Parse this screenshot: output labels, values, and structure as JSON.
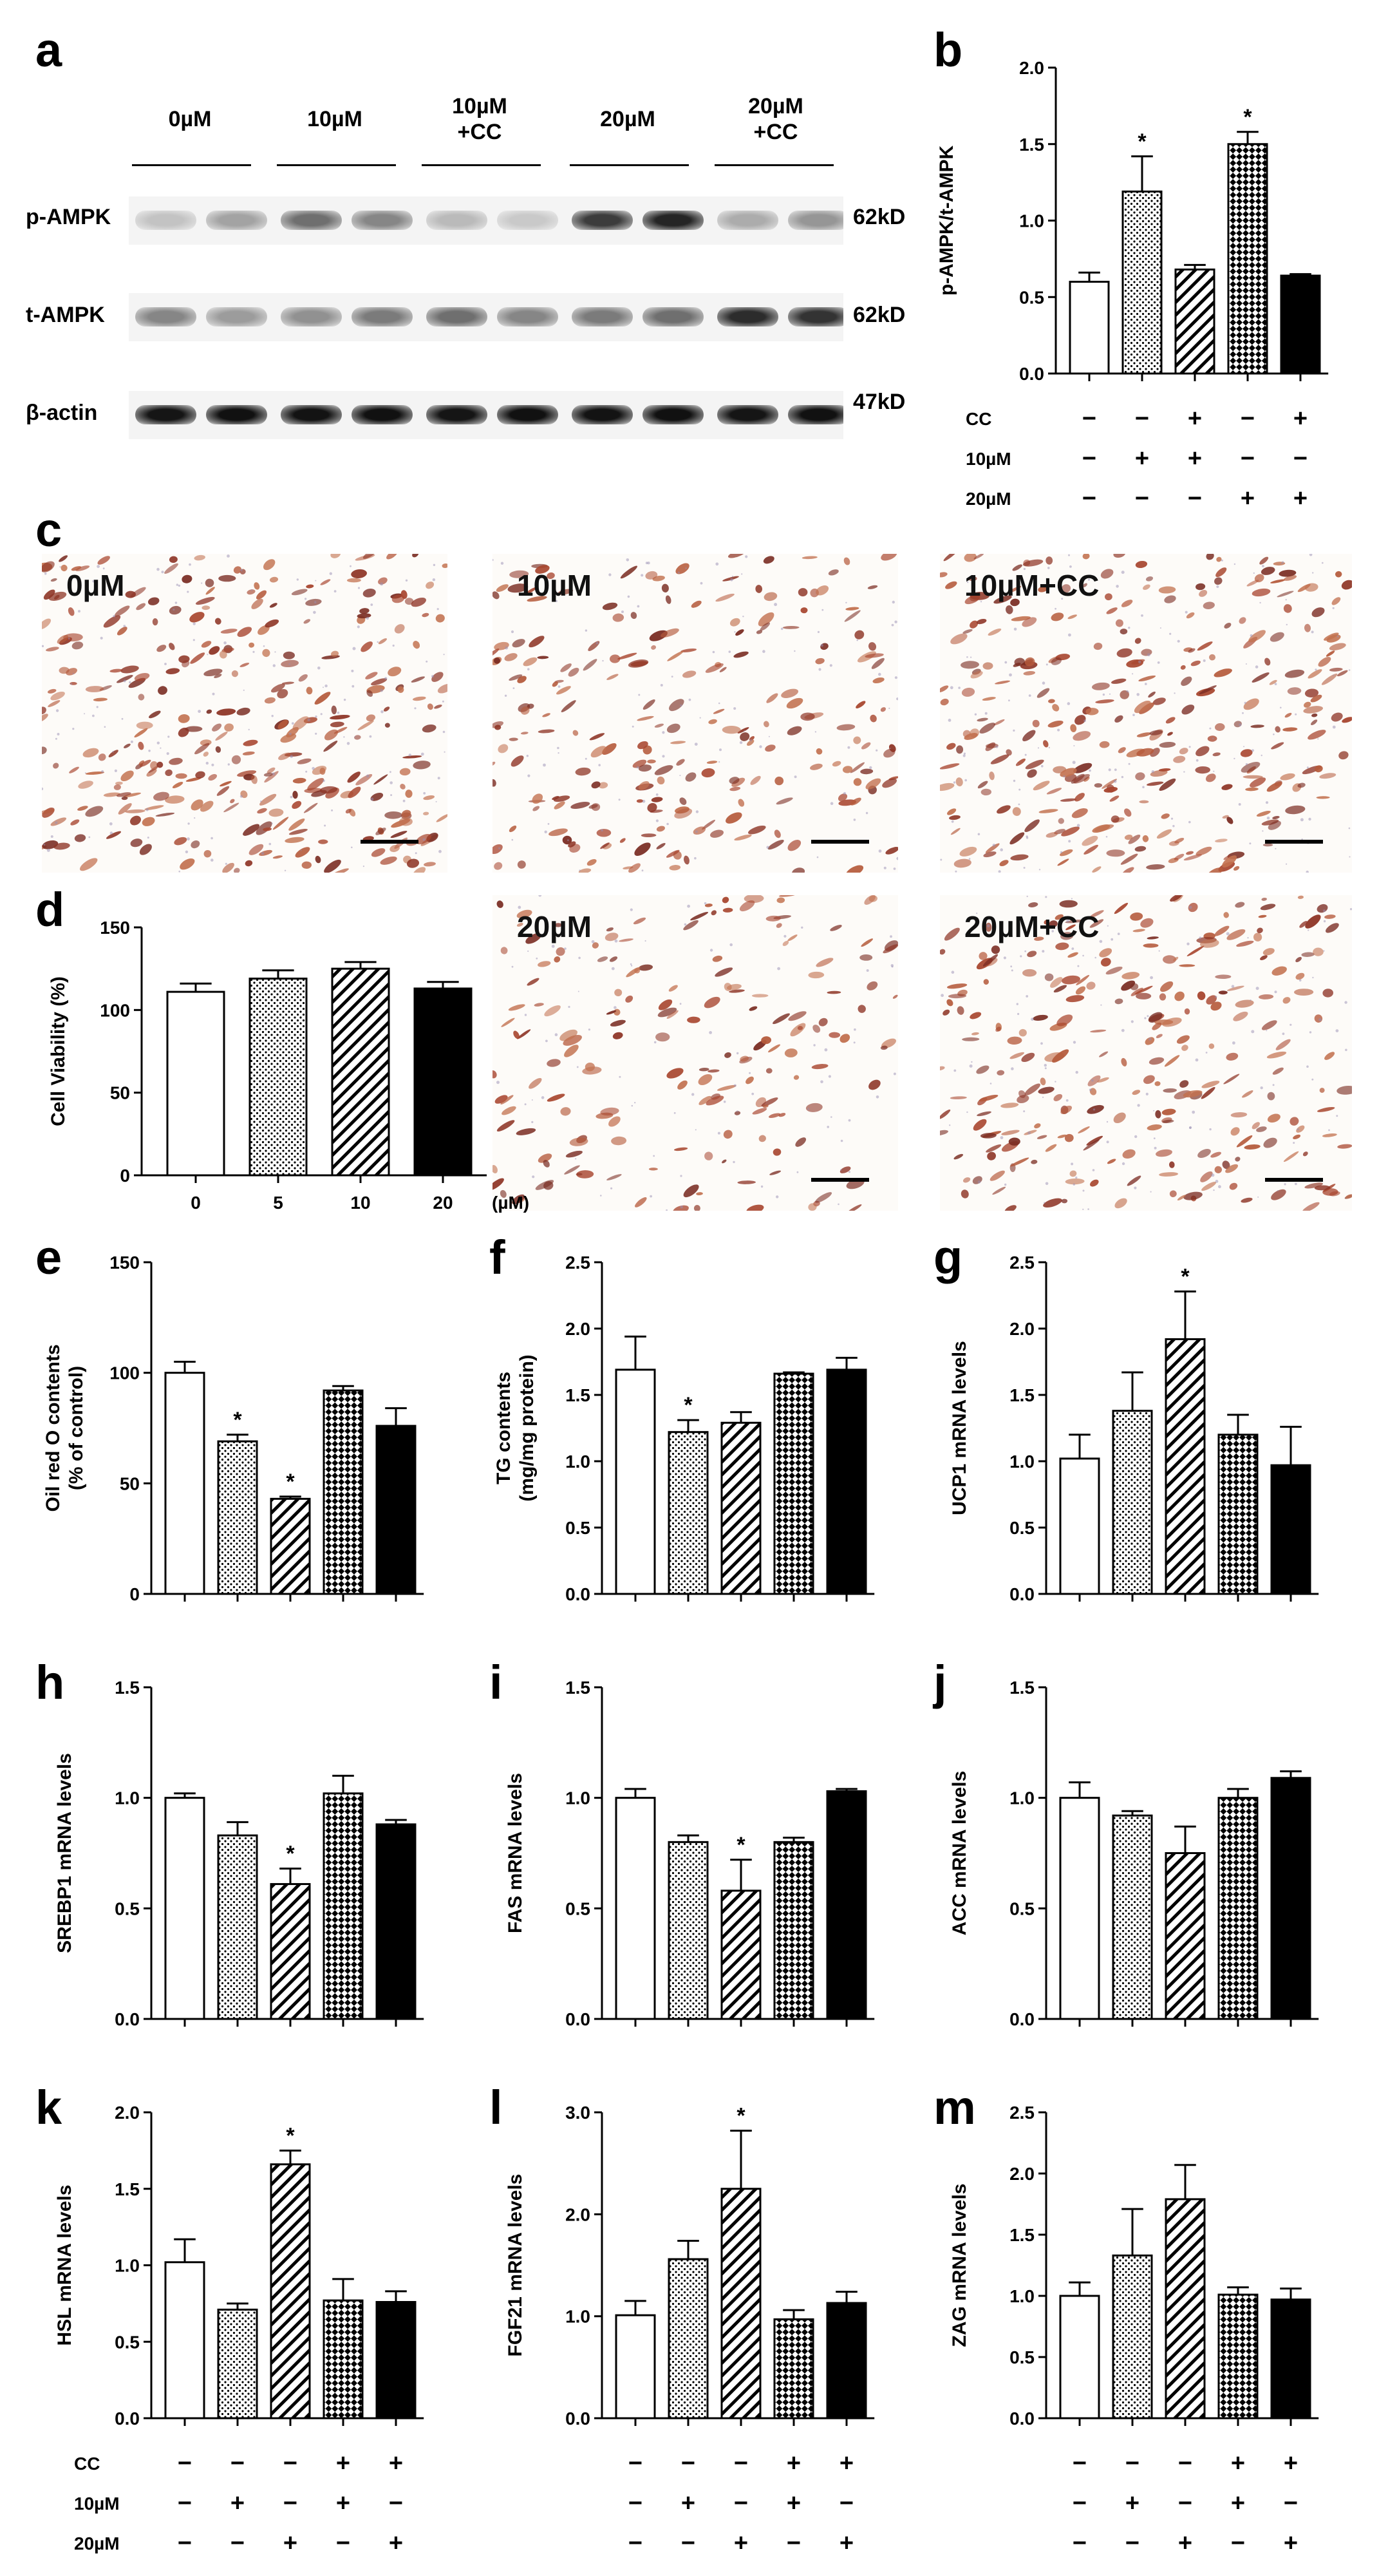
{
  "panels": {
    "a": "a",
    "b": "b",
    "c": "c",
    "d": "d",
    "e": "e",
    "f": "f",
    "g": "g",
    "h": "h",
    "i": "i",
    "j": "j",
    "k": "k",
    "l": "l",
    "m": "m"
  },
  "blot": {
    "lanes": [
      "0µM",
      "10µM",
      "10µM\n+CC",
      "20µM",
      "20µM\n+CC"
    ],
    "rows": [
      {
        "label": "p-AMPK",
        "kd": "62kD",
        "intensities": [
          0.18,
          0.32,
          0.55,
          0.45,
          0.22,
          0.15,
          0.78,
          0.88,
          0.28,
          0.38
        ]
      },
      {
        "label": "t-AMPK",
        "kd": "62kD",
        "intensities": [
          0.45,
          0.35,
          0.4,
          0.5,
          0.55,
          0.45,
          0.5,
          0.55,
          0.85,
          0.82
        ]
      },
      {
        "label": "β-actin",
        "kd": "47kD",
        "intensities": [
          0.95,
          0.97,
          0.96,
          0.97,
          0.95,
          0.97,
          0.96,
          0.97,
          0.95,
          0.97
        ]
      }
    ]
  },
  "micro": {
    "labels": [
      "0µM",
      "10µM",
      "10µM+CC",
      "20µM",
      "20µM+CC"
    ]
  },
  "treatment_table": {
    "rows": [
      {
        "label": "CC",
        "marks": [
          "−",
          "−",
          "+",
          "−",
          "+"
        ]
      },
      {
        "label": "10µM",
        "marks": [
          "−",
          "+",
          "+",
          "−",
          "−"
        ]
      },
      {
        "label": "20µM",
        "marks": [
          "−",
          "−",
          "−",
          "+",
          "+"
        ]
      }
    ],
    "bottom_rows": [
      {
        "label": "CC",
        "marks": [
          "−",
          "−",
          "−",
          "+",
          "+"
        ]
      },
      {
        "label": "10µM",
        "marks": [
          "−",
          "+",
          "−",
          "+",
          "−"
        ]
      },
      {
        "label": "20µM",
        "marks": [
          "−",
          "−",
          "+",
          "−",
          "+"
        ]
      }
    ]
  },
  "chart_data": [
    {
      "id": "b",
      "type": "bar",
      "ylabel": "p-AMPK/t-AMPK",
      "ylim": [
        0,
        2.0
      ],
      "yticks": [
        "0.0",
        "0.5",
        "1.0",
        "1.5",
        "2.0"
      ],
      "tickvals": [
        0,
        0.5,
        1.0,
        1.5,
        2.0
      ],
      "values": [
        0.6,
        1.19,
        0.68,
        1.5,
        0.64
      ],
      "errors": [
        0.06,
        0.23,
        0.03,
        0.08,
        0.01
      ],
      "sig": [
        "",
        "*",
        "",
        "*",
        ""
      ]
    },
    {
      "id": "d",
      "type": "bar",
      "ylabel": "Cell Viability (%)",
      "ylim": [
        0,
        150
      ],
      "yticks": [
        "0",
        "50",
        "100",
        "150"
      ],
      "tickvals": [
        0,
        50,
        100,
        150
      ],
      "categories": [
        "0",
        "5",
        "10",
        "20"
      ],
      "unit": "(µM)",
      "values": [
        111,
        119,
        125,
        113
      ],
      "errors": [
        5,
        5,
        4,
        4
      ],
      "sig": [
        "",
        "",
        "",
        ""
      ]
    },
    {
      "id": "e",
      "type": "bar",
      "ylabel": [
        "Oil red O contents",
        "(% of control)"
      ],
      "ylim": [
        0,
        150
      ],
      "yticks": [
        "0",
        "50",
        "100",
        "150"
      ],
      "tickvals": [
        0,
        50,
        100,
        150
      ],
      "values": [
        100,
        69,
        43,
        92,
        76
      ],
      "errors": [
        5,
        3,
        1,
        2,
        8
      ],
      "sig": [
        "",
        "*",
        "*",
        "",
        ""
      ]
    },
    {
      "id": "f",
      "type": "bar",
      "ylabel": [
        "TG contents",
        "(mg/mg protein)"
      ],
      "ylim": [
        0,
        2.5
      ],
      "yticks": [
        "0.0",
        "0.5",
        "1.0",
        "1.5",
        "2.0",
        "2.5"
      ],
      "tickvals": [
        0,
        0.5,
        1.0,
        1.5,
        2.0,
        2.5
      ],
      "values": [
        1.69,
        1.22,
        1.29,
        1.66,
        1.69
      ],
      "errors": [
        0.25,
        0.09,
        0.08,
        0.01,
        0.09
      ],
      "sig": [
        "",
        "*",
        "",
        "",
        ""
      ]
    },
    {
      "id": "g",
      "type": "bar",
      "ylabel": "UCP1 mRNA levels",
      "ylim": [
        0,
        2.5
      ],
      "yticks": [
        "0.0",
        "0.5",
        "1.0",
        "1.5",
        "2.0",
        "2.5"
      ],
      "tickvals": [
        0,
        0.5,
        1.0,
        1.5,
        2.0,
        2.5
      ],
      "values": [
        1.02,
        1.38,
        1.92,
        1.2,
        0.97
      ],
      "errors": [
        0.18,
        0.29,
        0.36,
        0.15,
        0.29
      ],
      "sig": [
        "",
        "",
        "*",
        "",
        ""
      ]
    },
    {
      "id": "h",
      "type": "bar",
      "ylabel": "SREBP1 mRNA levels",
      "ylim": [
        0,
        1.5
      ],
      "yticks": [
        "0.0",
        "0.5",
        "1.0",
        "1.5"
      ],
      "tickvals": [
        0,
        0.5,
        1.0,
        1.5
      ],
      "values": [
        1.0,
        0.83,
        0.61,
        1.02,
        0.88
      ],
      "errors": [
        0.02,
        0.06,
        0.07,
        0.08,
        0.02
      ],
      "sig": [
        "",
        "",
        "*",
        "",
        ""
      ]
    },
    {
      "id": "i",
      "type": "bar",
      "ylabel": "FAS mRNA levels",
      "ylim": [
        0,
        1.5
      ],
      "yticks": [
        "0.0",
        "0.5",
        "1.0",
        "1.5"
      ],
      "tickvals": [
        0,
        0.5,
        1.0,
        1.5
      ],
      "values": [
        1.0,
        0.8,
        0.58,
        0.8,
        1.03
      ],
      "errors": [
        0.04,
        0.03,
        0.14,
        0.02,
        0.01
      ],
      "sig": [
        "",
        "",
        "*",
        "",
        ""
      ]
    },
    {
      "id": "j",
      "type": "bar",
      "ylabel": "ACC mRNA levels",
      "ylim": [
        0,
        1.5
      ],
      "yticks": [
        "0.0",
        "0.5",
        "1.0",
        "1.5"
      ],
      "tickvals": [
        0,
        0.5,
        1.0,
        1.5
      ],
      "values": [
        1.0,
        0.92,
        0.75,
        1.0,
        1.09
      ],
      "errors": [
        0.07,
        0.02,
        0.12,
        0.04,
        0.03
      ],
      "sig": [
        "",
        "",
        "",
        "",
        ""
      ]
    },
    {
      "id": "k",
      "type": "bar",
      "ylabel": "HSL mRNA levels",
      "ylim": [
        0,
        2.0
      ],
      "yticks": [
        "0.0",
        "0.5",
        "1.0",
        "1.5",
        "2.0"
      ],
      "tickvals": [
        0,
        0.5,
        1.0,
        1.5,
        2.0
      ],
      "values": [
        1.02,
        0.71,
        1.66,
        0.77,
        0.76
      ],
      "errors": [
        0.15,
        0.04,
        0.09,
        0.14,
        0.07
      ],
      "sig": [
        "",
        "",
        "*",
        "",
        ""
      ]
    },
    {
      "id": "l",
      "type": "bar",
      "ylabel": "FGF21 mRNA levels",
      "ylim": [
        0,
        3.0
      ],
      "yticks": [
        "0.0",
        "1.0",
        "2.0",
        "3.0"
      ],
      "tickvals": [
        0,
        1.0,
        2.0,
        3.0
      ],
      "values": [
        1.01,
        1.56,
        2.25,
        0.97,
        1.13
      ],
      "errors": [
        0.14,
        0.18,
        0.57,
        0.09,
        0.11
      ],
      "sig": [
        "",
        "",
        "*",
        "",
        ""
      ]
    },
    {
      "id": "m",
      "type": "bar",
      "ylabel": "ZAG mRNA levels",
      "ylim": [
        0,
        2.5
      ],
      "yticks": [
        "0.0",
        "0.5",
        "1.0",
        "1.5",
        "2.0",
        "2.5"
      ],
      "tickvals": [
        0,
        0.5,
        1.0,
        1.5,
        2.0,
        2.5
      ],
      "values": [
        1.0,
        1.33,
        1.79,
        1.01,
        0.97
      ],
      "errors": [
        0.11,
        0.38,
        0.28,
        0.06,
        0.09
      ],
      "sig": [
        "",
        "",
        "",
        "",
        ""
      ]
    }
  ]
}
